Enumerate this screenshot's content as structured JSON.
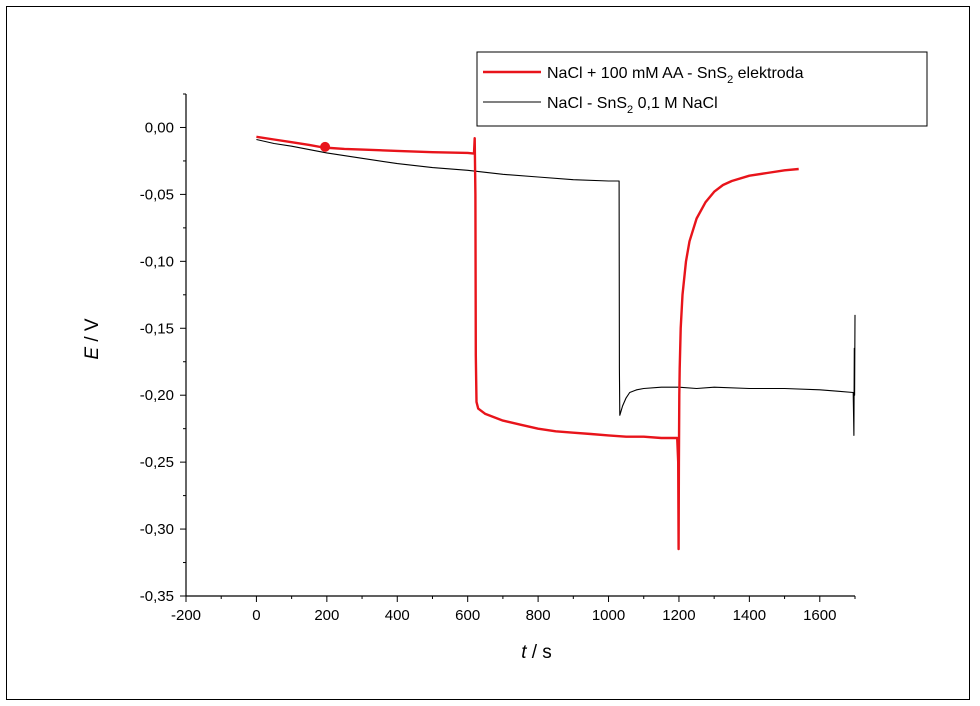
{
  "chart_data": {
    "type": "line",
    "title": "",
    "xlabel": {
      "symbol": "t",
      "unit": " / s"
    },
    "ylabel": {
      "symbol": "E",
      "unit": " / V"
    },
    "xlim": [
      -200,
      1700
    ],
    "ylim": [
      -0.35,
      0.025
    ],
    "x_ticks": [
      -200,
      0,
      200,
      400,
      600,
      800,
      1000,
      1200,
      1400,
      1600
    ],
    "x_tick_labels": [
      "-200",
      "0",
      "200",
      "400",
      "600",
      "800",
      "1000",
      "1200",
      "1400",
      "1600"
    ],
    "y_ticks": [
      -0.35,
      -0.3,
      -0.25,
      -0.2,
      -0.15,
      -0.1,
      -0.05,
      0.0
    ],
    "y_tick_labels": [
      "-0,35",
      "-0,30",
      "-0,25",
      "-0,20",
      "-0,15",
      "-0,10",
      "-0,05",
      "0,00"
    ],
    "grid": false,
    "legend_position": "top-right",
    "series": [
      {
        "name": "NaCl + 100 mM AA - SnS2 elektroda",
        "legend_parts": [
          "NaCl + 100 mM AA - SnS",
          "2",
          " elektroda"
        ],
        "color": "#e8141b",
        "x": [
          0,
          50,
          100,
          150,
          190,
          250,
          300,
          400,
          500,
          600,
          618,
          620,
          622,
          623,
          625,
          630,
          650,
          700,
          750,
          800,
          850,
          900,
          950,
          1000,
          1050,
          1100,
          1150,
          1195,
          1198,
          1199,
          1200,
          1201,
          1202,
          1205,
          1210,
          1220,
          1230,
          1250,
          1275,
          1300,
          1325,
          1350,
          1400,
          1450,
          1500,
          1540
        ],
        "y": [
          -0.007,
          -0.009,
          -0.011,
          -0.013,
          -0.015,
          -0.016,
          -0.0165,
          -0.0175,
          -0.0185,
          -0.019,
          -0.0195,
          -0.008,
          -0.05,
          -0.17,
          -0.205,
          -0.21,
          -0.214,
          -0.219,
          -0.222,
          -0.225,
          -0.227,
          -0.228,
          -0.229,
          -0.23,
          -0.231,
          -0.231,
          -0.232,
          -0.232,
          -0.25,
          -0.315,
          -0.25,
          -0.2,
          -0.18,
          -0.15,
          -0.125,
          -0.1,
          -0.085,
          -0.068,
          -0.056,
          -0.048,
          -0.043,
          -0.04,
          -0.036,
          -0.034,
          -0.032,
          -0.031
        ],
        "marker": {
          "x": 195,
          "y": -0.0145
        }
      },
      {
        "name": "NaCl - SnS2 0,1 M NaCl",
        "legend_parts": [
          "NaCl - SnS",
          "2",
          " 0,1 M NaCl"
        ],
        "color": "#000000",
        "x": [
          0,
          50,
          100,
          200,
          300,
          400,
          500,
          600,
          700,
          800,
          900,
          1000,
          1030,
          1031,
          1032,
          1040,
          1050,
          1060,
          1080,
          1100,
          1150,
          1200,
          1250,
          1300,
          1400,
          1500,
          1600,
          1650,
          1695,
          1697,
          1698,
          1699,
          1700
        ],
        "y": [
          -0.009,
          -0.012,
          -0.014,
          -0.019,
          -0.023,
          -0.027,
          -0.03,
          -0.032,
          -0.035,
          -0.037,
          -0.039,
          -0.04,
          -0.04,
          -0.18,
          -0.215,
          -0.208,
          -0.202,
          -0.198,
          -0.196,
          -0.195,
          -0.194,
          -0.194,
          -0.195,
          -0.194,
          -0.195,
          -0.195,
          -0.196,
          -0.197,
          -0.198,
          -0.23,
          -0.165,
          -0.2,
          -0.14
        ]
      }
    ]
  }
}
